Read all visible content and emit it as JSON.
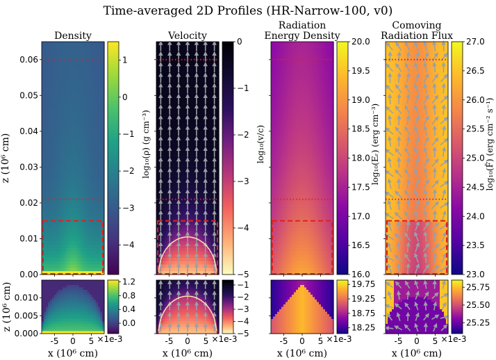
{
  "chart_data": {
    "type": "heatmap",
    "title": "Time-averaged 2D Profiles (HR-Narrow-100, v0)",
    "x_offset_label": "×1e-3",
    "xlabel": "x (10⁶ cm)",
    "ylabel": "z (10⁶ cm)",
    "x_ticks": [
      "-5",
      "0",
      "5"
    ],
    "x_tick_values": [
      -5,
      0,
      5
    ],
    "xlim": [
      -8.5,
      8.5
    ],
    "top_ylim": [
      0,
      0.065
    ],
    "top_y_ticks": [
      "0.00",
      "0.01",
      "0.02",
      "0.03",
      "0.04",
      "0.05",
      "0.06"
    ],
    "top_y_tick_values": [
      0.0,
      0.01,
      0.02,
      0.03,
      0.04,
      0.05,
      0.06
    ],
    "bottom_ylim": [
      0,
      0.015
    ],
    "bottom_y_ticks": [
      "0.000",
      "0.005",
      "0.010"
    ],
    "bottom_y_tick_values": [
      0.0,
      0.005,
      0.01
    ],
    "reference_lines_z": [
      0.06,
      0.021
    ],
    "zoom_box": {
      "x_range": [
        -8.5,
        8.5
      ],
      "z_range": [
        0,
        0.015
      ]
    },
    "panels": [
      {
        "title_lines": [
          "Density"
        ],
        "cmap": "viridis",
        "field": "density",
        "arrows": "none",
        "top_colorbar": {
          "label": "log₁₀(ρ) (g cm⁻³)",
          "vmin": -4.8,
          "vmax": 1.5,
          "ticks": [
            "−4",
            "−3",
            "−2",
            "−1",
            "0",
            "1"
          ],
          "tick_values": [
            -4,
            -3,
            -2,
            -1,
            0,
            1
          ]
        },
        "bottom_colorbar": {
          "vmin": -0.3,
          "vmax": 1.25,
          "ticks": [
            "0.0",
            "0.4",
            "0.8",
            "1.2"
          ],
          "tick_values": [
            0.0,
            0.4,
            0.8,
            1.2
          ]
        }
      },
      {
        "title_lines": [
          "Velocity"
        ],
        "cmap": "magma",
        "field": "velocity",
        "arrows": "up",
        "top_colorbar": {
          "label": "log₁₀(v/c)",
          "vmin": -5,
          "vmax": 0,
          "ticks": [
            "−5",
            "−4",
            "−3",
            "−2",
            "−1",
            "0"
          ],
          "tick_values": [
            -5,
            -4,
            -3,
            -2,
            -1,
            0
          ]
        },
        "bottom_colorbar": {
          "vmin": -5,
          "vmax": -0.6,
          "ticks": [
            "−5",
            "−4",
            "−3",
            "−2",
            "−1"
          ],
          "tick_values": [
            -5,
            -4,
            -3,
            -2,
            -1
          ]
        }
      },
      {
        "title_lines": [
          "Radiation",
          "Energy Density"
        ],
        "cmap": "plasma",
        "field": "radiation_energy",
        "arrows": "none",
        "top_colorbar": {
          "label": "log₁₀(Eᵣ) (erg cm⁻³)",
          "vmin": 16.0,
          "vmax": 20.0,
          "ticks": [
            "16.0",
            "16.5",
            "17.0",
            "17.5",
            "18.0",
            "18.5",
            "19.0",
            "19.5",
            "20.0"
          ],
          "tick_values": [
            16.0,
            16.5,
            17.0,
            17.5,
            18.0,
            18.5,
            19.0,
            19.5,
            20.0
          ]
        },
        "bottom_colorbar": {
          "vmin": 18.05,
          "vmax": 19.9,
          "ticks": [
            "18.25",
            "18.75",
            "19.25",
            "19.75"
          ],
          "tick_values": [
            18.25,
            18.75,
            19.25,
            19.75
          ]
        }
      },
      {
        "title_lines": [
          "Comoving",
          "Radiation Flux"
        ],
        "cmap": "plasma",
        "field": "radiation_flux",
        "arrows": "mixed",
        "top_colorbar": {
          "label": "log₁₀(F̃) (erg cm⁻² s⁻¹)",
          "vmin": 23.0,
          "vmax": 27.0,
          "ticks": [
            "23.0",
            "23.5",
            "24.0",
            "24.5",
            "25.0",
            "25.5",
            "26.0",
            "26.5",
            "27.0"
          ],
          "tick_values": [
            23.0,
            23.5,
            24.0,
            24.5,
            25.0,
            25.5,
            26.0,
            26.5,
            27.0
          ]
        },
        "bottom_colorbar": {
          "vmin": 25.1,
          "vmax": 25.85,
          "ticks": [
            "25.25",
            "25.50",
            "25.75"
          ],
          "tick_values": [
            25.25,
            25.5,
            25.75
          ]
        }
      }
    ]
  }
}
